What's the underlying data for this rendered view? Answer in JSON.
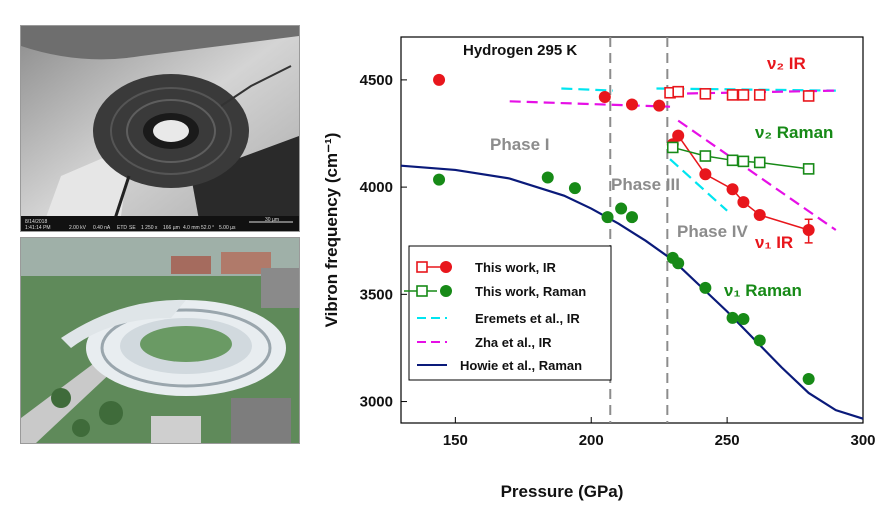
{
  "figure": {
    "sem_image": {
      "description_icon": "sem-micrograph",
      "info_bar": {
        "date": "8/14/2018",
        "time": "1:41:14 PM",
        "hv": "2.00 kV",
        "curr": "0.40 nA",
        "det": "ETD",
        "mode": "SE",
        "mag": "1 250 x",
        "hfw": "166 µm",
        "wd": "4.0 mm",
        "tilt": "52.0 °",
        "dwell": "5.00 µs",
        "scale": "30 µm"
      }
    },
    "aerial_image": {
      "description_icon": "synchrotron-aerial-photo"
    }
  },
  "chart_data": {
    "type": "scatter",
    "title": "Hydrogen 295 K",
    "xlabel": "Pressure (GPa)",
    "ylabel": "Vibron frequency (cm⁻¹)",
    "xlim": [
      130,
      300
    ],
    "ylim": [
      2900,
      4700
    ],
    "xticks": [
      150,
      200,
      250,
      300
    ],
    "yticks": [
      3000,
      3500,
      4000,
      4500
    ],
    "grid": false,
    "legend_position": "lower-left",
    "phase_boundaries": [
      207,
      228
    ],
    "phase_labels": [
      "Phase I",
      "Phase III",
      "Phase IV"
    ],
    "annotations": [
      {
        "text": "ν₂ IR",
        "color": "#e8161c"
      },
      {
        "text": "ν₂ Raman",
        "color": "#178a17"
      },
      {
        "text": "ν₁ IR",
        "color": "#e8161c"
      },
      {
        "text": "ν₁ Raman",
        "color": "#178a17"
      }
    ],
    "series": [
      {
        "name": "This work, IR",
        "marker": "filled-circle",
        "color": "#e8161c",
        "x": [
          144,
          205,
          215,
          225,
          230,
          232,
          242,
          252,
          256,
          262,
          280
        ],
        "y": [
          4500,
          4420,
          4385,
          4380,
          4200,
          4240,
          4060,
          3990,
          3930,
          3870,
          3800
        ],
        "connected_from_index": 4
      },
      {
        "name": "This work, IR",
        "marker": "open-square",
        "color": "#e8161c",
        "x": [
          229,
          232,
          242,
          252,
          256,
          262,
          280
        ],
        "y": [
          4440,
          4445,
          4435,
          4430,
          4430,
          4430,
          4425
        ]
      },
      {
        "name": "This work, Raman",
        "marker": "filled-circle",
        "color": "#178a17",
        "x": [
          144,
          184,
          194,
          206,
          211,
          215,
          230,
          232,
          242,
          252,
          256,
          262,
          280
        ],
        "y": [
          4035,
          4045,
          3995,
          3860,
          3900,
          3860,
          3670,
          3645,
          3530,
          3390,
          3385,
          3285,
          3105
        ]
      },
      {
        "name": "This work, Raman",
        "marker": "open-square",
        "color": "#178a17",
        "x": [
          230,
          242,
          252,
          256,
          262,
          280
        ],
        "y": [
          4185,
          4145,
          4125,
          4120,
          4115,
          4085
        ],
        "connected": true
      },
      {
        "name": "Eremets et al., IR",
        "style": "dashed",
        "color": "#00e5f0",
        "segments": [
          {
            "x": [
              189,
              208
            ],
            "y": [
              4460,
              4450
            ]
          },
          {
            "x": [
              224,
              290
            ],
            "y": [
              4460,
              4450
            ]
          },
          {
            "x": [
              229,
              250
            ],
            "y": [
              4130,
              3890
            ]
          }
        ]
      },
      {
        "name": "Zha et al., IR",
        "style": "dashed",
        "color": "#e60fe6",
        "segments": [
          {
            "x": [
              170,
              229
            ],
            "y": [
              4400,
              4375
            ]
          },
          {
            "x": [
              229,
              290
            ],
            "y": [
              4435,
              4450
            ]
          },
          {
            "x": [
              232,
              290
            ],
            "y": [
              4310,
              3800
            ]
          }
        ]
      },
      {
        "name": "Howie et al., Raman",
        "style": "solid",
        "color": "#0a1a7a",
        "x": [
          130,
          150,
          170,
          190,
          200,
          210,
          220,
          230,
          240,
          250,
          260,
          270,
          280,
          290,
          300
        ],
        "y": [
          4100,
          4080,
          4040,
          3960,
          3900,
          3830,
          3750,
          3660,
          3540,
          3420,
          3290,
          3160,
          3040,
          2960,
          2920
        ]
      }
    ]
  }
}
